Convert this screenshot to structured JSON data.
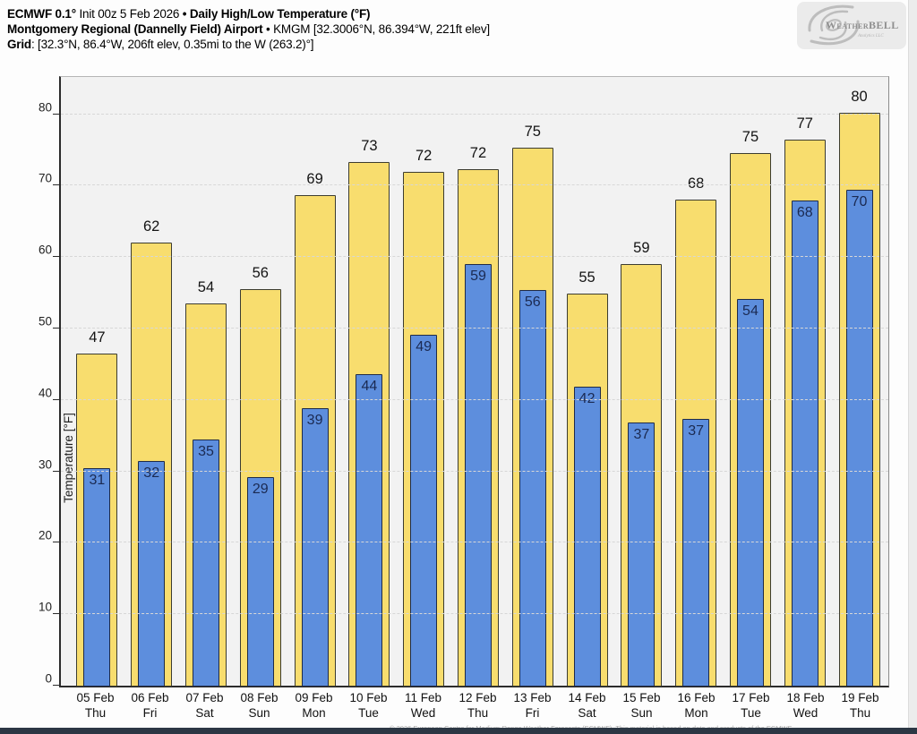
{
  "header": {
    "line1": {
      "model": "ECMWF 0.1°",
      "init": " Init 00z 5 Feb 2026 ",
      "title": "• Daily High/Low Temperature (°F)"
    },
    "line2": {
      "station": "Montgomery Regional (Dannelly Field) Airport",
      "details": " • KMGM [32.3006°N, 86.394°W, 221ft elev]"
    },
    "line3": {
      "label": "Grid",
      "details": ": [32.3°N, 86.4°W, 206ft elev, 0.35mi to the W (263.2)°]"
    }
  },
  "logo": {
    "name": "WeatherBELL",
    "tagline": "Analytics LLC",
    "icon": "hurricane-swirl-icon",
    "text_color": "#8f8f8f",
    "swirl_color": "#bdbdbd"
  },
  "footer": {
    "copyright": "© 2026 European Centre for Medium-Range Weather Forecasts (ECMWF). This material is based on data and products of the ECMWF"
  },
  "colors": {
    "high_bar_fill": "#f8dd6e",
    "high_bar_border": "#3c3c30",
    "low_bar_fill": "#5d8edd",
    "low_bar_border": "#1f2b47",
    "low_label_text": "#1b2a52",
    "plot_background": "#f2f2f2",
    "gridline": "#d7d7d7",
    "bottom_bar": "#2c3744"
  },
  "chart_data": {
    "type": "bar",
    "title": "Daily High/Low Temperature (°F)",
    "ylabel": "Temperature [°F]",
    "yticks": [
      0,
      10,
      20,
      30,
      40,
      50,
      60,
      70,
      80
    ],
    "ylim": [
      0,
      85.6
    ],
    "grid": "horizontal-dashed",
    "legend": "none",
    "categories": [
      "05 Feb",
      "06 Feb",
      "07 Feb",
      "08 Feb",
      "09 Feb",
      "10 Feb",
      "11 Feb",
      "12 Feb",
      "13 Feb",
      "14 Feb",
      "15 Feb",
      "16 Feb",
      "17 Feb",
      "18 Feb",
      "19 Feb"
    ],
    "days": [
      "Thu",
      "Fri",
      "Sat",
      "Sun",
      "Mon",
      "Tue",
      "Wed",
      "Thu",
      "Fri",
      "Sat",
      "Sun",
      "Mon",
      "Tue",
      "Wed",
      "Thu"
    ],
    "series": [
      {
        "name": "High",
        "color": "#f8dd6e",
        "values": [
          47,
          62,
          54,
          56,
          69,
          73,
          72,
          72,
          75,
          55,
          59,
          68,
          75,
          77,
          80
        ]
      },
      {
        "name": "Low",
        "color": "#5d8edd",
        "values": [
          31,
          32,
          35,
          29,
          39,
          44,
          49,
          59,
          56,
          42,
          37,
          37,
          54,
          68,
          70
        ]
      }
    ],
    "bar_render_heights": {
      "high": [
        46.6,
        62.2,
        53.7,
        55.7,
        68.8,
        73.4,
        72.1,
        72.4,
        75.4,
        55.0,
        59.1,
        68.2,
        74.7,
        76.6,
        80.4
      ],
      "low": [
        30.6,
        31.6,
        34.6,
        29.3,
        39.0,
        43.7,
        49.3,
        59.1,
        55.5,
        42.0,
        37.0,
        37.5,
        54.3,
        68.0,
        69.5
      ]
    }
  }
}
